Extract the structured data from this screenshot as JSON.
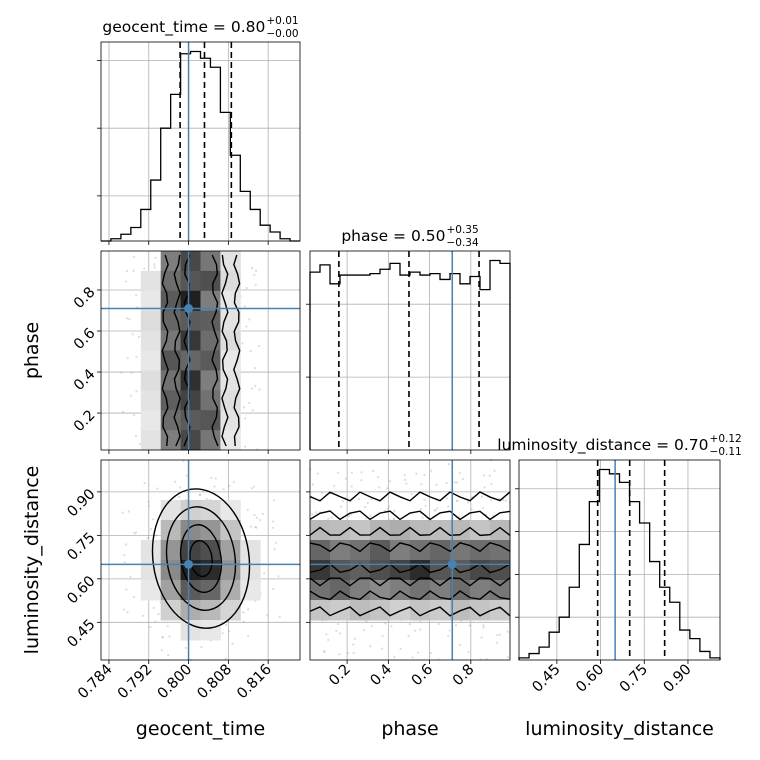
{
  "chart_data": {
    "type": "corner",
    "parameters": [
      {
        "key": "geocent_time",
        "axis_label": "geocent_time",
        "title": "geocent_time = 0.80",
        "title_plus": "+0.01",
        "title_minus": "−0.00",
        "range": [
          0.7824,
          0.8224
        ],
        "ticks": [
          0.784,
          0.792,
          0.8,
          0.808,
          0.816
        ],
        "tick_labels": [
          "0.784",
          "0.792",
          "0.800",
          "0.808",
          "0.816"
        ],
        "injection": 0.8,
        "quantiles": [
          0.7983,
          0.8032,
          0.8086
        ],
        "histogram": {
          "start": 0.7824,
          "bin_width": 0.002,
          "counts": [
            0,
            1,
            3,
            6,
            14,
            27,
            50,
            65,
            83,
            84,
            81,
            77,
            57,
            38,
            22,
            14,
            7,
            4,
            1,
            0
          ]
        },
        "hist_yticks": [
          20,
          50,
          80
        ]
      },
      {
        "key": "phase",
        "axis_label": "phase",
        "title": "phase = 0.50",
        "title_plus": "+0.35",
        "title_minus": "−0.34",
        "range": [
          0.02,
          0.99
        ],
        "ticks": [
          0.2,
          0.4,
          0.6,
          0.8
        ],
        "tick_labels": [
          "0.2",
          "0.4",
          "0.6",
          "0.8"
        ],
        "injection": 0.71,
        "quantiles": [
          0.16,
          0.5,
          0.84
        ],
        "histogram": {
          "start": 0.02,
          "bin_width": 0.0485,
          "counts": [
            122,
            127,
            114,
            120,
            120,
            120,
            121,
            124,
            128,
            120,
            122,
            120,
            121,
            117,
            121,
            114,
            119,
            110,
            130,
            128
          ]
        },
        "hist_yticks": [
          50,
          100
        ]
      },
      {
        "key": "luminosity_distance",
        "axis_label": "luminosity_distance",
        "title": "luminosity_distance = 0.70",
        "title_plus": "+0.12",
        "title_minus": "−0.11",
        "range": [
          0.32,
          1.01
        ],
        "ticks": [
          0.45,
          0.6,
          0.75,
          0.9
        ],
        "tick_labels": [
          "0.45",
          "0.60",
          "0.75",
          "0.90"
        ],
        "injection": 0.65,
        "quantiles": [
          0.59,
          0.7,
          0.82
        ],
        "histogram": {
          "start": 0.32,
          "bin_width": 0.0345,
          "counts": [
            1,
            3,
            6,
            13,
            20,
            34,
            54,
            74,
            89,
            87,
            83,
            74,
            64,
            46,
            34,
            27,
            14,
            10,
            4,
            1
          ]
        },
        "hist_yticks": [
          20,
          40,
          60,
          80
        ]
      }
    ],
    "pairs": [
      {
        "x": "geocent_time",
        "y": "phase",
        "density": {
          "x_bins": 10,
          "y_bins": 10,
          "grid": [
            [
              0,
              0.01,
              0.08,
              0.55,
              0.78,
              0.58,
              0.12,
              0.02,
              0,
              0
            ],
            [
              0,
              0.02,
              0.12,
              0.62,
              0.72,
              0.75,
              0.15,
              0.03,
              0,
              0
            ],
            [
              0,
              0.01,
              0.1,
              0.7,
              0.95,
              0.55,
              0.1,
              0.02,
              0,
              0
            ],
            [
              0,
              0.02,
              0.15,
              0.65,
              0.7,
              0.68,
              0.12,
              0.02,
              0,
              0
            ],
            [
              0,
              0.01,
              0.12,
              0.58,
              0.85,
              0.62,
              0.15,
              0.02,
              0,
              0
            ],
            [
              0,
              0.02,
              0.1,
              0.72,
              0.65,
              0.7,
              0.1,
              0.02,
              0,
              0
            ],
            [
              0,
              0.01,
              0.14,
              0.6,
              0.88,
              0.55,
              0.12,
              0.03,
              0,
              0
            ],
            [
              0,
              0.02,
              0.12,
              0.68,
              0.8,
              0.6,
              0.14,
              0.02,
              0,
              0
            ],
            [
              0,
              0.01,
              0.1,
              0.62,
              0.7,
              0.72,
              0.12,
              0.02,
              0,
              0
            ],
            [
              0,
              0.02,
              0.12,
              0.55,
              0.78,
              0.58,
              0.1,
              0.02,
              0,
              0
            ]
          ]
        },
        "injection": [
          0.8,
          0.71
        ]
      },
      {
        "x": "geocent_time",
        "y": "luminosity_distance",
        "density": {
          "x_bins": 10,
          "y_bins": 10,
          "grid": [
            [
              0,
              0,
              0,
              0,
              0.01,
              0.01,
              0,
              0,
              0,
              0
            ],
            [
              0,
              0,
              0.01,
              0.03,
              0.05,
              0.05,
              0.03,
              0.01,
              0,
              0
            ],
            [
              0,
              0.01,
              0.04,
              0.12,
              0.2,
              0.18,
              0.1,
              0.03,
              0.01,
              0
            ],
            [
              0,
              0.02,
              0.08,
              0.3,
              0.5,
              0.45,
              0.25,
              0.08,
              0.02,
              0
            ],
            [
              0,
              0.02,
              0.12,
              0.45,
              0.8,
              0.75,
              0.4,
              0.12,
              0.02,
              0
            ],
            [
              0,
              0.02,
              0.12,
              0.5,
              0.95,
              0.9,
              0.45,
              0.12,
              0.02,
              0
            ],
            [
              0,
              0.02,
              0.1,
              0.4,
              0.7,
              0.65,
              0.35,
              0.1,
              0.02,
              0
            ],
            [
              0,
              0.01,
              0.06,
              0.2,
              0.35,
              0.3,
              0.18,
              0.05,
              0.01,
              0
            ],
            [
              0,
              0,
              0.02,
              0.08,
              0.12,
              0.1,
              0.06,
              0.02,
              0,
              0
            ],
            [
              0,
              0,
              0,
              0.01,
              0.02,
              0.02,
              0.01,
              0,
              0,
              0
            ]
          ]
        },
        "injection": [
          0.8,
          0.65
        ]
      },
      {
        "x": "phase",
        "y": "luminosity_distance",
        "density": {
          "x_bins": 10,
          "y_bins": 10,
          "grid": [
            [
              0.01,
              0.01,
              0.01,
              0.01,
              0.01,
              0.01,
              0.01,
              0.01,
              0.01,
              0.01
            ],
            [
              0.03,
              0.02,
              0.03,
              0.03,
              0.02,
              0.03,
              0.03,
              0.02,
              0.03,
              0.03
            ],
            [
              0.08,
              0.08,
              0.07,
              0.08,
              0.09,
              0.08,
              0.07,
              0.08,
              0.08,
              0.07
            ],
            [
              0.3,
              0.28,
              0.25,
              0.32,
              0.35,
              0.3,
              0.28,
              0.3,
              0.25,
              0.3
            ],
            [
              0.65,
              0.55,
              0.6,
              0.7,
              0.55,
              0.6,
              0.65,
              0.58,
              0.62,
              0.6
            ],
            [
              0.85,
              0.72,
              0.68,
              0.75,
              0.8,
              0.9,
              0.72,
              0.7,
              0.78,
              0.75
            ],
            [
              0.6,
              0.65,
              0.55,
              0.5,
              0.55,
              0.6,
              0.55,
              0.62,
              0.55,
              0.58
            ],
            [
              0.25,
              0.22,
              0.28,
              0.25,
              0.2,
              0.25,
              0.22,
              0.28,
              0.25,
              0.22
            ],
            [
              0.05,
              0.05,
              0.06,
              0.05,
              0.04,
              0.05,
              0.06,
              0.05,
              0.04,
              0.05
            ],
            [
              0.01,
              0.01,
              0.01,
              0.01,
              0.01,
              0.01,
              0.01,
              0.01,
              0.01,
              0.01
            ]
          ]
        },
        "injection": [
          0.71,
          0.65
        ]
      }
    ],
    "injection_color": "#4682b4",
    "hist_color": "#000000",
    "grid": true
  }
}
